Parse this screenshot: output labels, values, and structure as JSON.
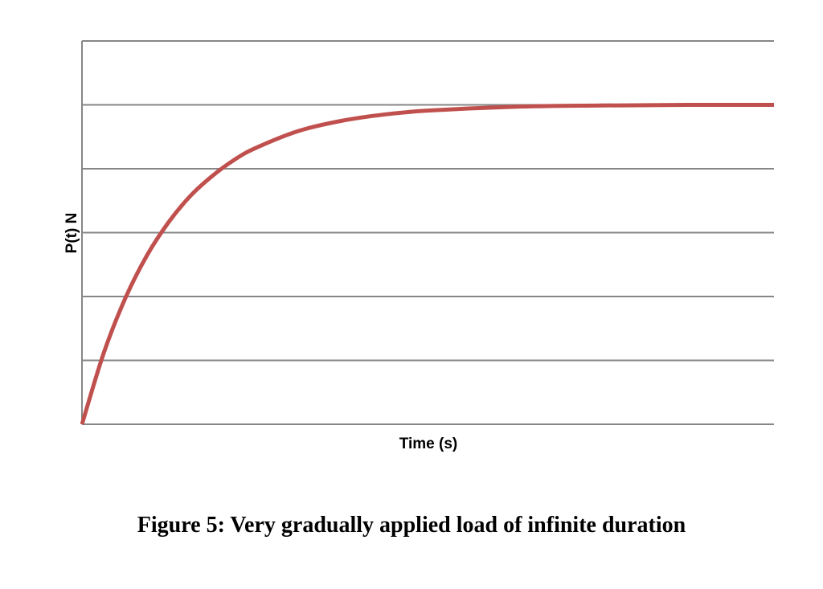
{
  "chart_data": {
    "type": "line",
    "title": "",
    "xlabel": "Time (s)",
    "ylabel": "P(t) N",
    "xlim": [
      0,
      8
    ],
    "ylim": [
      0,
      6
    ],
    "grid": true,
    "gridlines_y": [
      0,
      1,
      2,
      3,
      4,
      5,
      6
    ],
    "show_tick_labels": false,
    "series": [
      {
        "name": "P(t)",
        "color": "#c0504d",
        "x": [
          0,
          0.25,
          0.5,
          0.75,
          1,
          1.25,
          1.5,
          1.75,
          2,
          2.5,
          3,
          3.5,
          4,
          5,
          6,
          7,
          8
        ],
        "y": [
          0,
          1.11,
          1.97,
          2.64,
          3.16,
          3.57,
          3.88,
          4.13,
          4.32,
          4.59,
          4.75,
          4.85,
          4.91,
          4.97,
          4.99,
          5.0,
          5.0
        ]
      }
    ]
  },
  "caption": "Figure 5: Very gradually applied load of infinite duration"
}
